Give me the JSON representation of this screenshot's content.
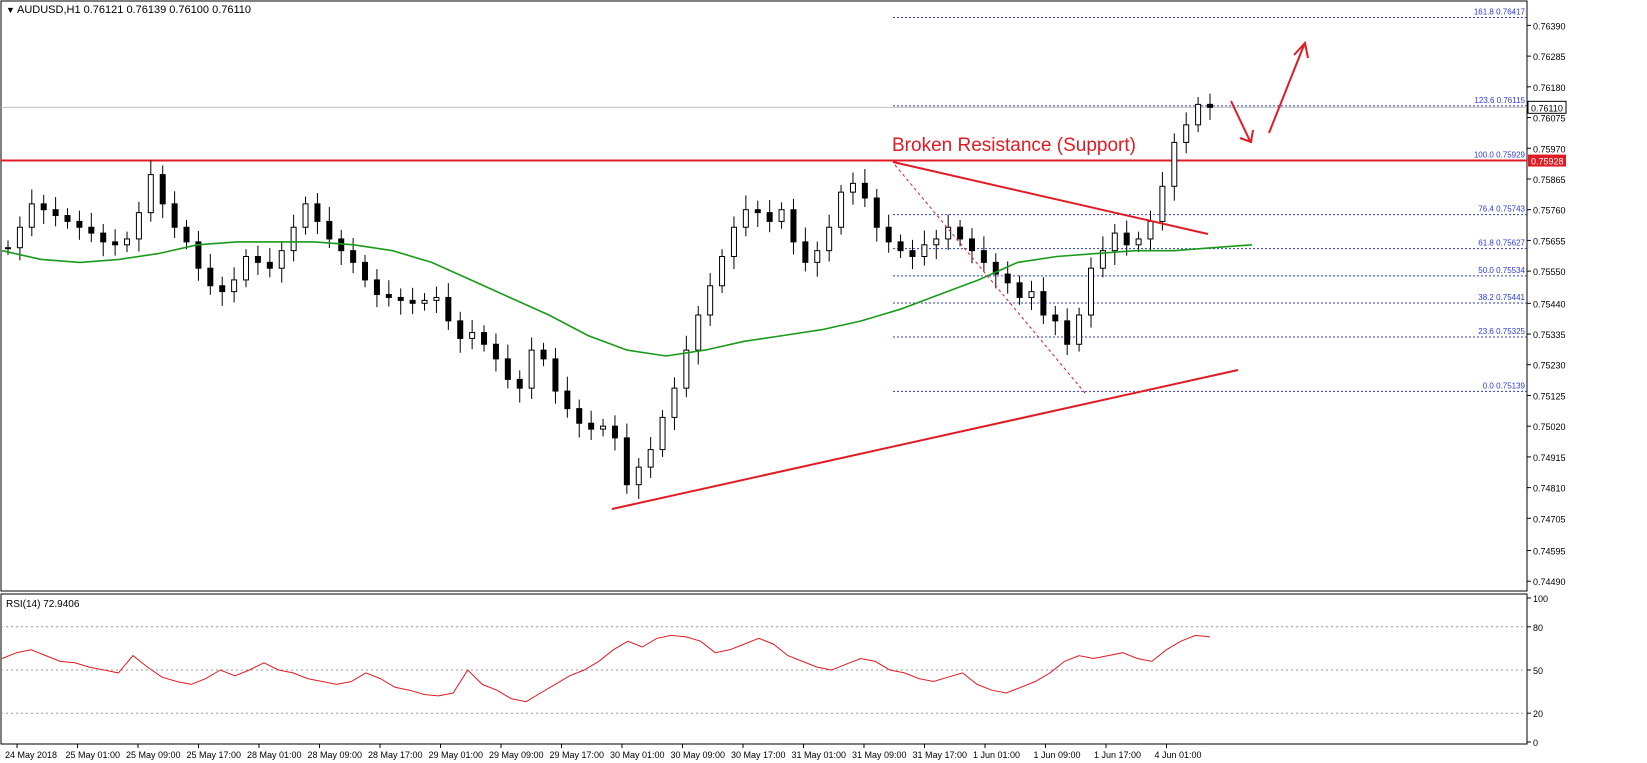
{
  "chart_data": {
    "type": "candlestick",
    "symbol_header": "AUDUSD,H1  0.76121 0.76139 0.76100 0.76110",
    "current_price": "0.76110",
    "horizontal_level": {
      "value": 0.75928,
      "label": "0.75928",
      "annotation": "Broken Resistance (Support)"
    },
    "y_axis": {
      "ticks": [
        "0.76390",
        "0.76285",
        "0.76180",
        "0.76075",
        "0.75970",
        "0.75865",
        "0.75760",
        "0.75655",
        "0.75550",
        "0.75440",
        "0.75335",
        "0.75230",
        "0.75125",
        "0.75020",
        "0.74915",
        "0.74810",
        "0.74705",
        "0.74595",
        "0.74490"
      ],
      "ylim": [
        0.7446,
        0.7647
      ]
    },
    "x_axis": {
      "ticks": [
        "24 May 2018",
        "25 May 01:00",
        "25 May 09:00",
        "25 May 17:00",
        "28 May 01:00",
        "28 May 09:00",
        "28 May 17:00",
        "29 May 01:00",
        "29 May 09:00",
        "29 May 17:00",
        "30 May 01:00",
        "30 May 09:00",
        "30 May 17:00",
        "31 May 01:00",
        "31 May 09:00",
        "31 May 17:00",
        "1 Jun 01:00",
        "1 Jun 09:00",
        "1 Jun 17:00",
        "4 Jun 01:00"
      ]
    },
    "fibonacci": [
      {
        "label": "161.8",
        "value": "0.76417"
      },
      {
        "label": "123.6",
        "value": "0.76115"
      },
      {
        "label": "100.0",
        "value": "0.75929"
      },
      {
        "label": "76.4",
        "value": "0.75743"
      },
      {
        "label": "61.8",
        "value": "0.75627"
      },
      {
        "label": "50.0",
        "value": "0.75534"
      },
      {
        "label": "38.2",
        "value": "0.75441"
      },
      {
        "label": "23.6",
        "value": "0.75325"
      },
      {
        "label": "0.0",
        "value": "0.75139"
      }
    ],
    "close_path": [
      0.7563,
      0.757,
      0.7578,
      0.7576,
      0.7574,
      0.7572,
      0.757,
      0.7568,
      0.7565,
      0.7564,
      0.7566,
      0.7575,
      0.7588,
      0.7578,
      0.757,
      0.7565,
      0.7556,
      0.755,
      0.7548,
      0.7552,
      0.756,
      0.7558,
      0.7556,
      0.7562,
      0.757,
      0.7578,
      0.7572,
      0.7566,
      0.7562,
      0.7558,
      0.7552,
      0.7547,
      0.7546,
      0.7545,
      0.7544,
      0.7545,
      0.7546,
      0.7538,
      0.7532,
      0.7534,
      0.753,
      0.7525,
      0.7518,
      0.7515,
      0.7528,
      0.7525,
      0.7514,
      0.7508,
      0.7503,
      0.7501,
      0.7502,
      0.7498,
      0.7482,
      0.7488,
      0.7494,
      0.7505,
      0.7515,
      0.7528,
      0.754,
      0.755,
      0.756,
      0.757,
      0.7576,
      0.7575,
      0.7572,
      0.7576,
      0.7565,
      0.7558,
      0.7562,
      0.757,
      0.7582,
      0.7585,
      0.758,
      0.757,
      0.7565,
      0.7562,
      0.756,
      0.7564,
      0.7566,
      0.757,
      0.7566,
      0.7562,
      0.7558,
      0.7554,
      0.7551,
      0.7546,
      0.7548,
      0.754,
      0.7538,
      0.753,
      0.754,
      0.7556,
      0.7562,
      0.7568,
      0.7564,
      0.7566,
      0.7572,
      0.7584,
      0.7599,
      0.7605,
      0.7612,
      0.7611
    ],
    "ma_path": [
      0.7562,
      0.7559,
      0.7558,
      0.7559,
      0.7561,
      0.7564,
      0.7565,
      0.7565,
      0.7565,
      0.7564,
      0.7562,
      0.7558,
      0.7552,
      0.7546,
      0.754,
      0.7533,
      0.7528,
      0.7526,
      0.7528,
      0.7531,
      0.7533,
      0.7535,
      0.7538,
      0.7542,
      0.7547,
      0.7552,
      0.7558,
      0.756,
      0.7561,
      0.7562,
      0.7562,
      0.7563,
      0.7564
    ],
    "rsi": {
      "label": "RSI(14) 72.9406",
      "ticks": [
        "100",
        "80",
        "50",
        "20",
        "0"
      ],
      "values": [
        58,
        62,
        64,
        60,
        56,
        55,
        52,
        50,
        48,
        60,
        52,
        45,
        42,
        40,
        44,
        50,
        46,
        50,
        55,
        50,
        48,
        44,
        42,
        40,
        42,
        48,
        44,
        38,
        36,
        33,
        32,
        34,
        50,
        40,
        36,
        30,
        28,
        34,
        40,
        46,
        50,
        56,
        64,
        70,
        66,
        72,
        74,
        73,
        70,
        62,
        64,
        68,
        72,
        68,
        60,
        56,
        52,
        50,
        54,
        58,
        56,
        50,
        48,
        44,
        42,
        45,
        48,
        40,
        36,
        34,
        38,
        42,
        48,
        56,
        60,
        58,
        60,
        62,
        58,
        56,
        64,
        70,
        74,
        73
      ]
    }
  },
  "annotations": {
    "arrow_down": "down-arrow",
    "arrow_up": "up-arrow"
  }
}
